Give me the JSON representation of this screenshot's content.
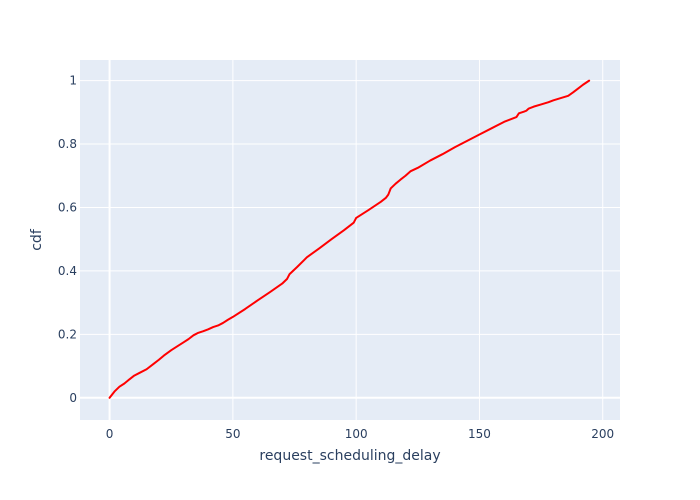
{
  "chart_data": {
    "type": "line",
    "title": "",
    "xlabel": "request_scheduling_delay",
    "ylabel": "cdf",
    "xlim": [
      -12,
      207
    ],
    "ylim": [
      -0.07,
      1.065
    ],
    "x_ticks": [
      0,
      50,
      100,
      150,
      200
    ],
    "x_tick_labels": [
      "0",
      "50",
      "100",
      "150",
      "200"
    ],
    "y_ticks": [
      0,
      0.2,
      0.4,
      0.6,
      0.8,
      1
    ],
    "y_tick_labels": [
      "0",
      "0.2",
      "0.4",
      "0.6",
      "0.8",
      "1"
    ],
    "grid": true,
    "plot_bg": "#e5ecf6",
    "grid_color": "#ffffff",
    "text_color": "#2a3f5f",
    "series": [
      {
        "color": "#ff0000",
        "x": [
          0,
          2,
          4,
          6,
          8,
          10,
          12,
          15,
          18,
          20,
          22,
          25,
          28,
          30,
          32,
          34,
          36,
          38,
          40,
          42,
          44,
          46,
          48,
          50,
          55,
          60,
          65,
          70,
          72,
          73,
          76,
          79,
          80,
          85,
          90,
          95,
          99,
          100,
          105,
          110,
          112,
          113,
          114,
          116,
          118,
          120,
          122,
          125,
          130,
          135,
          140,
          145,
          150,
          155,
          160,
          165,
          166,
          168,
          169,
          170,
          172,
          175,
          178,
          180,
          183,
          186,
          188,
          190,
          192,
          194.5
        ],
        "y": [
          0,
          0.02,
          0.035,
          0.045,
          0.058,
          0.07,
          0.078,
          0.09,
          0.108,
          0.12,
          0.133,
          0.15,
          0.165,
          0.175,
          0.185,
          0.197,
          0.205,
          0.21,
          0.216,
          0.223,
          0.228,
          0.236,
          0.246,
          0.255,
          0.28,
          0.307,
          0.333,
          0.36,
          0.375,
          0.39,
          0.412,
          0.435,
          0.443,
          0.471,
          0.5,
          0.528,
          0.552,
          0.567,
          0.592,
          0.618,
          0.63,
          0.64,
          0.66,
          0.675,
          0.688,
          0.7,
          0.714,
          0.725,
          0.748,
          0.768,
          0.79,
          0.81,
          0.83,
          0.85,
          0.87,
          0.885,
          0.897,
          0.902,
          0.905,
          0.912,
          0.918,
          0.925,
          0.932,
          0.938,
          0.945,
          0.952,
          0.963,
          0.975,
          0.987,
          1.0
        ]
      }
    ]
  }
}
